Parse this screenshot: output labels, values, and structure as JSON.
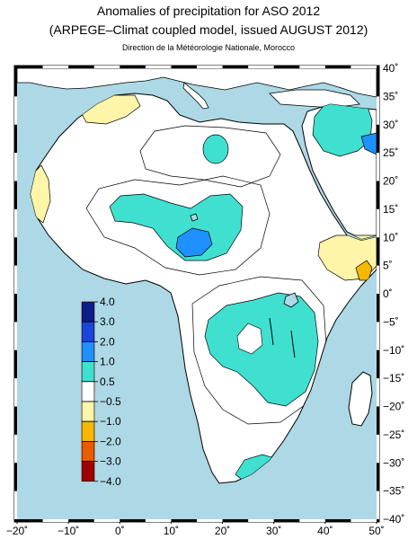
{
  "header": {
    "title": "Anomalies of precipitation for ASO 2012",
    "subtitle": "(ARPEGE–Climat coupled model, issued AUGUST 2012)",
    "source": "Direction de la Météorologie Nationale, Morocco"
  },
  "map": {
    "lon_range": [
      -20,
      50
    ],
    "lat_range": [
      -40,
      40
    ],
    "ocean_color": "#add8e6",
    "land_color": "#ffffff",
    "lon_labels": [
      "−20˚",
      "−10˚",
      "0˚",
      "10˚",
      "20˚",
      "30˚",
      "40˚",
      "50˚"
    ],
    "lat_labels": [
      "40˚",
      "35˚",
      "30˚",
      "25˚",
      "20˚",
      "15˚",
      "10˚",
      "5˚",
      "0˚",
      "−5˚",
      "−10˚",
      "−15˚",
      "−20˚",
      "−25˚",
      "−30˚",
      "−35˚",
      "−40˚"
    ]
  },
  "legend": {
    "levels": [
      "4.0",
      "3.0",
      "2.0",
      "1.0",
      "0.5",
      "−0.5",
      "−1.0",
      "−2.0",
      "−3.0",
      "−4.0"
    ],
    "colors": [
      "#0b1f8a",
      "#1b45d6",
      "#1e90ff",
      "#40e0d0",
      "#ffffff",
      "#fff5a8",
      "#f5b800",
      "#e65c00",
      "#a00000"
    ]
  }
}
